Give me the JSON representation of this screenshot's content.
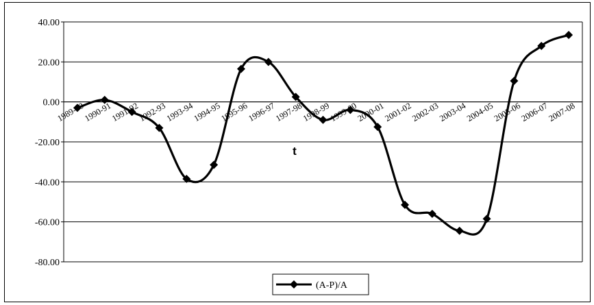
{
  "chart_data": {
    "type": "line",
    "title": "",
    "xlabel": "t",
    "ylabel": "",
    "ylim": [
      -80,
      40
    ],
    "yticks": [
      40,
      20,
      0,
      -20,
      -40,
      -60,
      -80
    ],
    "ytick_labels": [
      "40.00",
      "20.00",
      "0.00",
      "-20.00",
      "-40.00",
      "-60.00",
      "-80.00"
    ],
    "categories": [
      "1989-90",
      "1990-91",
      "1991-92",
      "1992-93",
      "1993-94",
      "1994-95",
      "1995-96",
      "1996-97",
      "1997-98",
      "1998-99",
      "1999-00",
      "2000-01",
      "2001-02",
      "2002-03",
      "2003-04",
      "2004-05",
      "2005-06",
      "2006-07",
      "2007-08"
    ],
    "series": [
      {
        "name": "(A-P)/A",
        "color": "#000000",
        "marker": "diamond",
        "smooth": true,
        "values": [
          -3.0,
          1.0,
          -5.0,
          -13.0,
          -38.5,
          -31.5,
          16.5,
          20.0,
          2.5,
          -9.0,
          -4.0,
          -12.5,
          -51.5,
          -56.0,
          -64.5,
          -58.5,
          10.5,
          28.0,
          33.5
        ]
      }
    ],
    "grid": {
      "horizontal": true,
      "vertical": false
    },
    "legend_position": "bottom-center"
  }
}
